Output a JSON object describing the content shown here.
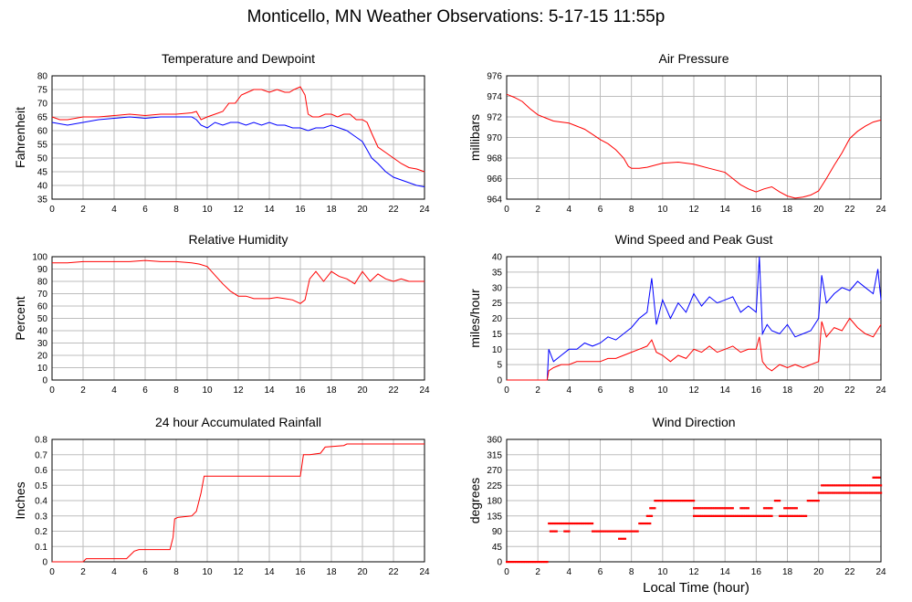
{
  "page": {
    "title": "Monticello, MN Weather Observations: 5-17-15 11:55p",
    "x_axis_label": "Local Time (hour)"
  },
  "colors": {
    "red": "#ff0000",
    "blue": "#0000ff",
    "grid": "#bdbdbd",
    "axis": "#000000"
  },
  "chart_data": [
    {
      "id": "temp",
      "type": "line",
      "title": "Temperature and Dewpoint",
      "ylabel": "Fahrenheit",
      "xlim": [
        0,
        24
      ],
      "ylim": [
        35,
        80
      ],
      "xticks": [
        0,
        2,
        4,
        6,
        8,
        10,
        12,
        14,
        16,
        18,
        20,
        22,
        24
      ],
      "yticks": [
        35,
        40,
        45,
        50,
        55,
        60,
        65,
        70,
        75,
        80
      ],
      "grid": true,
      "series": [
        {
          "color": "#ff0000",
          "x": [
            0,
            0.5,
            1,
            2,
            3,
            4,
            5,
            6,
            7,
            8,
            9,
            9.3,
            9.6,
            10,
            10.5,
            11,
            11.4,
            11.8,
            12.2,
            12.6,
            13,
            13.5,
            14,
            14.5,
            15,
            15.3,
            15.6,
            16,
            16.3,
            16.5,
            16.8,
            17.2,
            17.6,
            18,
            18.4,
            18.8,
            19.2,
            19.6,
            20,
            20.3,
            20.6,
            21,
            21.5,
            22,
            22.5,
            23,
            23.5,
            24
          ],
          "y": [
            65,
            64,
            64,
            65,
            65,
            65.5,
            66,
            65.5,
            66,
            66,
            66.5,
            67,
            64,
            65,
            66,
            67,
            70,
            70,
            73,
            74,
            75,
            75,
            74,
            75,
            74,
            74,
            75,
            76,
            73,
            66,
            65,
            65,
            66,
            66,
            65,
            66,
            66,
            64,
            64,
            63,
            59,
            54,
            52,
            50,
            48,
            46.5,
            46,
            45
          ]
        },
        {
          "color": "#0000ff",
          "x": [
            0,
            0.5,
            1,
            2,
            3,
            4,
            5,
            6,
            7,
            8,
            9,
            9.3,
            9.6,
            10,
            10.5,
            11,
            11.5,
            12,
            12.5,
            13,
            13.5,
            14,
            14.5,
            15,
            15.5,
            16,
            16.5,
            17,
            17.5,
            18,
            18.5,
            19,
            19.5,
            20,
            20.3,
            20.6,
            21,
            21.5,
            22,
            22.5,
            23,
            23.5,
            24
          ],
          "y": [
            63,
            62.5,
            62,
            63,
            64,
            64.5,
            65,
            64.5,
            65,
            65,
            65,
            64,
            62,
            61,
            63,
            62,
            63,
            63,
            62,
            63,
            62,
            63,
            62,
            62,
            61,
            61,
            60,
            61,
            61,
            62,
            61,
            60,
            58,
            56,
            53,
            50,
            48,
            45,
            43,
            42,
            41,
            40,
            39.5
          ]
        }
      ]
    },
    {
      "id": "pressure",
      "type": "line",
      "title": "Air Pressure",
      "ylabel": "millibars",
      "xlim": [
        0,
        24
      ],
      "ylim": [
        964,
        976
      ],
      "xticks": [
        0,
        2,
        4,
        6,
        8,
        10,
        12,
        14,
        16,
        18,
        20,
        22,
        24
      ],
      "yticks": [
        964,
        966,
        968,
        970,
        972,
        974,
        976
      ],
      "grid": true,
      "series": [
        {
          "color": "#ff0000",
          "x": [
            0,
            0.5,
            1,
            1.5,
            2,
            2.5,
            3,
            4,
            4.5,
            5,
            5.5,
            6,
            6.5,
            7,
            7.5,
            7.8,
            8,
            8.5,
            9,
            10,
            11,
            12,
            13,
            14,
            14.5,
            15,
            15.5,
            16,
            16.5,
            17,
            17.5,
            18,
            18.5,
            19,
            19.5,
            20,
            20.5,
            21,
            21.5,
            22,
            22.5,
            23,
            23.5,
            24
          ],
          "y": [
            974.2,
            973.9,
            973.5,
            972.8,
            972.2,
            971.9,
            971.6,
            971.4,
            971.1,
            970.8,
            970.3,
            969.8,
            969.4,
            968.8,
            968,
            967.2,
            967,
            967,
            967.1,
            967.5,
            967.6,
            967.4,
            967,
            966.6,
            966,
            965.4,
            965,
            964.7,
            965,
            965.2,
            964.7,
            964.3,
            964.1,
            964.2,
            964.4,
            964.8,
            966,
            967.3,
            968.5,
            969.9,
            970.6,
            971.1,
            971.5,
            971.7
          ]
        }
      ]
    },
    {
      "id": "humidity",
      "type": "line",
      "title": "Relative Humidity",
      "ylabel": "Percent",
      "xlim": [
        0,
        24
      ],
      "ylim": [
        0,
        100
      ],
      "xticks": [
        0,
        2,
        4,
        6,
        8,
        10,
        12,
        14,
        16,
        18,
        20,
        22,
        24
      ],
      "yticks": [
        0,
        10,
        20,
        30,
        40,
        50,
        60,
        70,
        80,
        90,
        100
      ],
      "grid": true,
      "series": [
        {
          "color": "#ff0000",
          "x": [
            0,
            1,
            2,
            3,
            4,
            5,
            6,
            7,
            8,
            9,
            9.5,
            10,
            10.5,
            11,
            11.5,
            12,
            12.5,
            13,
            13.5,
            14,
            14.5,
            15,
            15.5,
            16,
            16.3,
            16.6,
            17,
            17.5,
            18,
            18.5,
            19,
            19.5,
            20,
            20.5,
            21,
            21.5,
            22,
            22.5,
            23,
            23.5,
            24
          ],
          "y": [
            95,
            95,
            96,
            96,
            96,
            96,
            97,
            96,
            96,
            95,
            94,
            92,
            85,
            78,
            72,
            68,
            68,
            66,
            66,
            66,
            67,
            66,
            65,
            62,
            65,
            82,
            88,
            80,
            88,
            84,
            82,
            78,
            88,
            80,
            86,
            82,
            80,
            82,
            80,
            80,
            80
          ]
        }
      ]
    },
    {
      "id": "wind",
      "type": "line",
      "title": "Wind Speed and Peak Gust",
      "ylabel": "miles/hour",
      "xlim": [
        0,
        24
      ],
      "ylim": [
        0,
        40
      ],
      "xticks": [
        0,
        2,
        4,
        6,
        8,
        10,
        12,
        14,
        16,
        18,
        20,
        22,
        24
      ],
      "yticks": [
        0,
        5,
        10,
        15,
        20,
        25,
        30,
        35,
        40
      ],
      "grid": true,
      "series": [
        {
          "color": "#0000ff",
          "x": [
            0,
            1,
            2,
            2.6,
            2.7,
            3,
            3.5,
            4,
            4.5,
            5,
            5.5,
            6,
            6.5,
            7,
            7.5,
            8,
            8.5,
            9,
            9.3,
            9.6,
            10,
            10.5,
            11,
            11.5,
            12,
            12.5,
            13,
            13.5,
            14,
            14.5,
            15,
            15.5,
            16,
            16.2,
            16.4,
            16.7,
            17,
            17.5,
            18,
            18.5,
            19,
            19.5,
            20,
            20.2,
            20.5,
            21,
            21.5,
            22,
            22.5,
            23,
            23.5,
            23.8,
            24
          ],
          "y": [
            0,
            0,
            0,
            0,
            10,
            6,
            8,
            10,
            10,
            12,
            11,
            12,
            14,
            13,
            15,
            17,
            20,
            22,
            33,
            18,
            26,
            20,
            25,
            22,
            28,
            24,
            27,
            25,
            26,
            27,
            22,
            24,
            22,
            40,
            15,
            18,
            16,
            15,
            18,
            14,
            15,
            16,
            20,
            34,
            25,
            28,
            30,
            29,
            32,
            30,
            28,
            36,
            26
          ]
        },
        {
          "color": "#ff0000",
          "x": [
            0,
            1,
            2,
            2.6,
            2.7,
            3,
            3.5,
            4,
            4.5,
            5,
            5.5,
            6,
            6.5,
            7,
            7.5,
            8,
            8.5,
            9,
            9.3,
            9.6,
            10,
            10.5,
            11,
            11.5,
            12,
            12.5,
            13,
            13.5,
            14,
            14.5,
            15,
            15.5,
            16,
            16.2,
            16.4,
            16.7,
            17,
            17.5,
            18,
            18.5,
            19,
            19.5,
            20,
            20.2,
            20.5,
            21,
            21.5,
            22,
            22.5,
            23,
            23.5,
            24
          ],
          "y": [
            0,
            0,
            0,
            0,
            3,
            4,
            5,
            5,
            6,
            6,
            6,
            6,
            7,
            7,
            8,
            9,
            10,
            11,
            13,
            9,
            8,
            6,
            8,
            7,
            10,
            9,
            11,
            9,
            10,
            11,
            9,
            10,
            10,
            14,
            6,
            4,
            3,
            5,
            4,
            5,
            4,
            5,
            6,
            19,
            14,
            17,
            16,
            20,
            17,
            15,
            14,
            18
          ]
        }
      ]
    },
    {
      "id": "rain",
      "type": "line",
      "title": "24 hour Accumulated Rainfall",
      "ylabel": "Inches",
      "xlim": [
        0,
        24
      ],
      "ylim": [
        0,
        0.8
      ],
      "xticks": [
        0,
        2,
        4,
        6,
        8,
        10,
        12,
        14,
        16,
        18,
        20,
        22,
        24
      ],
      "yticks": [
        0,
        0.1,
        0.2,
        0.3,
        0.4,
        0.5,
        0.6,
        0.7,
        0.8
      ],
      "grid": true,
      "series": [
        {
          "color": "#ff0000",
          "x": [
            0,
            2,
            2.2,
            4.8,
            5.1,
            5.3,
            5.6,
            7.6,
            7.8,
            7.9,
            8.1,
            9.0,
            9.3,
            9.6,
            9.8,
            16,
            16.2,
            16.6,
            17.3,
            17.6,
            18.8,
            19.0,
            24
          ],
          "y": [
            0,
            0,
            0.02,
            0.02,
            0.05,
            0.07,
            0.08,
            0.08,
            0.16,
            0.28,
            0.29,
            0.3,
            0.33,
            0.45,
            0.56,
            0.56,
            0.7,
            0.7,
            0.71,
            0.75,
            0.76,
            0.77,
            0.77
          ]
        }
      ]
    },
    {
      "id": "direction",
      "type": "scatter",
      "title": "Wind Direction",
      "ylabel": "degrees",
      "xlim": [
        0,
        24
      ],
      "ylim": [
        0,
        360
      ],
      "xticks": [
        0,
        2,
        4,
        6,
        8,
        10,
        12,
        14,
        16,
        18,
        20,
        22,
        24
      ],
      "yticks": [
        0,
        45,
        90,
        135,
        180,
        225,
        270,
        315,
        360
      ],
      "grid": true,
      "series": [
        {
          "color": "#ff0000",
          "segments": [
            {
              "y": 0,
              "from": 0,
              "to": 2.6
            },
            {
              "y": 113,
              "from": 2.7,
              "to": 5.5
            },
            {
              "y": 90,
              "from": 2.8,
              "to": 3.2
            },
            {
              "y": 90,
              "from": 3.7,
              "to": 4.0
            },
            {
              "y": 90,
              "from": 5.5,
              "to": 7.6
            },
            {
              "y": 68,
              "from": 7.2,
              "to": 7.6
            },
            {
              "y": 90,
              "from": 7.7,
              "to": 8.4
            },
            {
              "y": 113,
              "from": 8.5,
              "to": 9.2
            },
            {
              "y": 135,
              "from": 9.0,
              "to": 9.3
            },
            {
              "y": 158,
              "from": 9.2,
              "to": 9.5
            },
            {
              "y": 180,
              "from": 9.5,
              "to": 12.0
            },
            {
              "y": 135,
              "from": 12.0,
              "to": 17.0
            },
            {
              "y": 158,
              "from": 12.0,
              "to": 14.5
            },
            {
              "y": 158,
              "from": 15.0,
              "to": 15.5
            },
            {
              "y": 158,
              "from": 16.5,
              "to": 17.0
            },
            {
              "y": 180,
              "from": 17.2,
              "to": 17.5
            },
            {
              "y": 135,
              "from": 17.5,
              "to": 19.2
            },
            {
              "y": 158,
              "from": 17.8,
              "to": 18.6
            },
            {
              "y": 180,
              "from": 19.3,
              "to": 20.0
            },
            {
              "y": 203,
              "from": 20.0,
              "to": 24.0
            },
            {
              "y": 225,
              "from": 20.2,
              "to": 24.0
            },
            {
              "y": 248,
              "from": 23.5,
              "to": 23.9
            }
          ]
        }
      ]
    }
  ]
}
